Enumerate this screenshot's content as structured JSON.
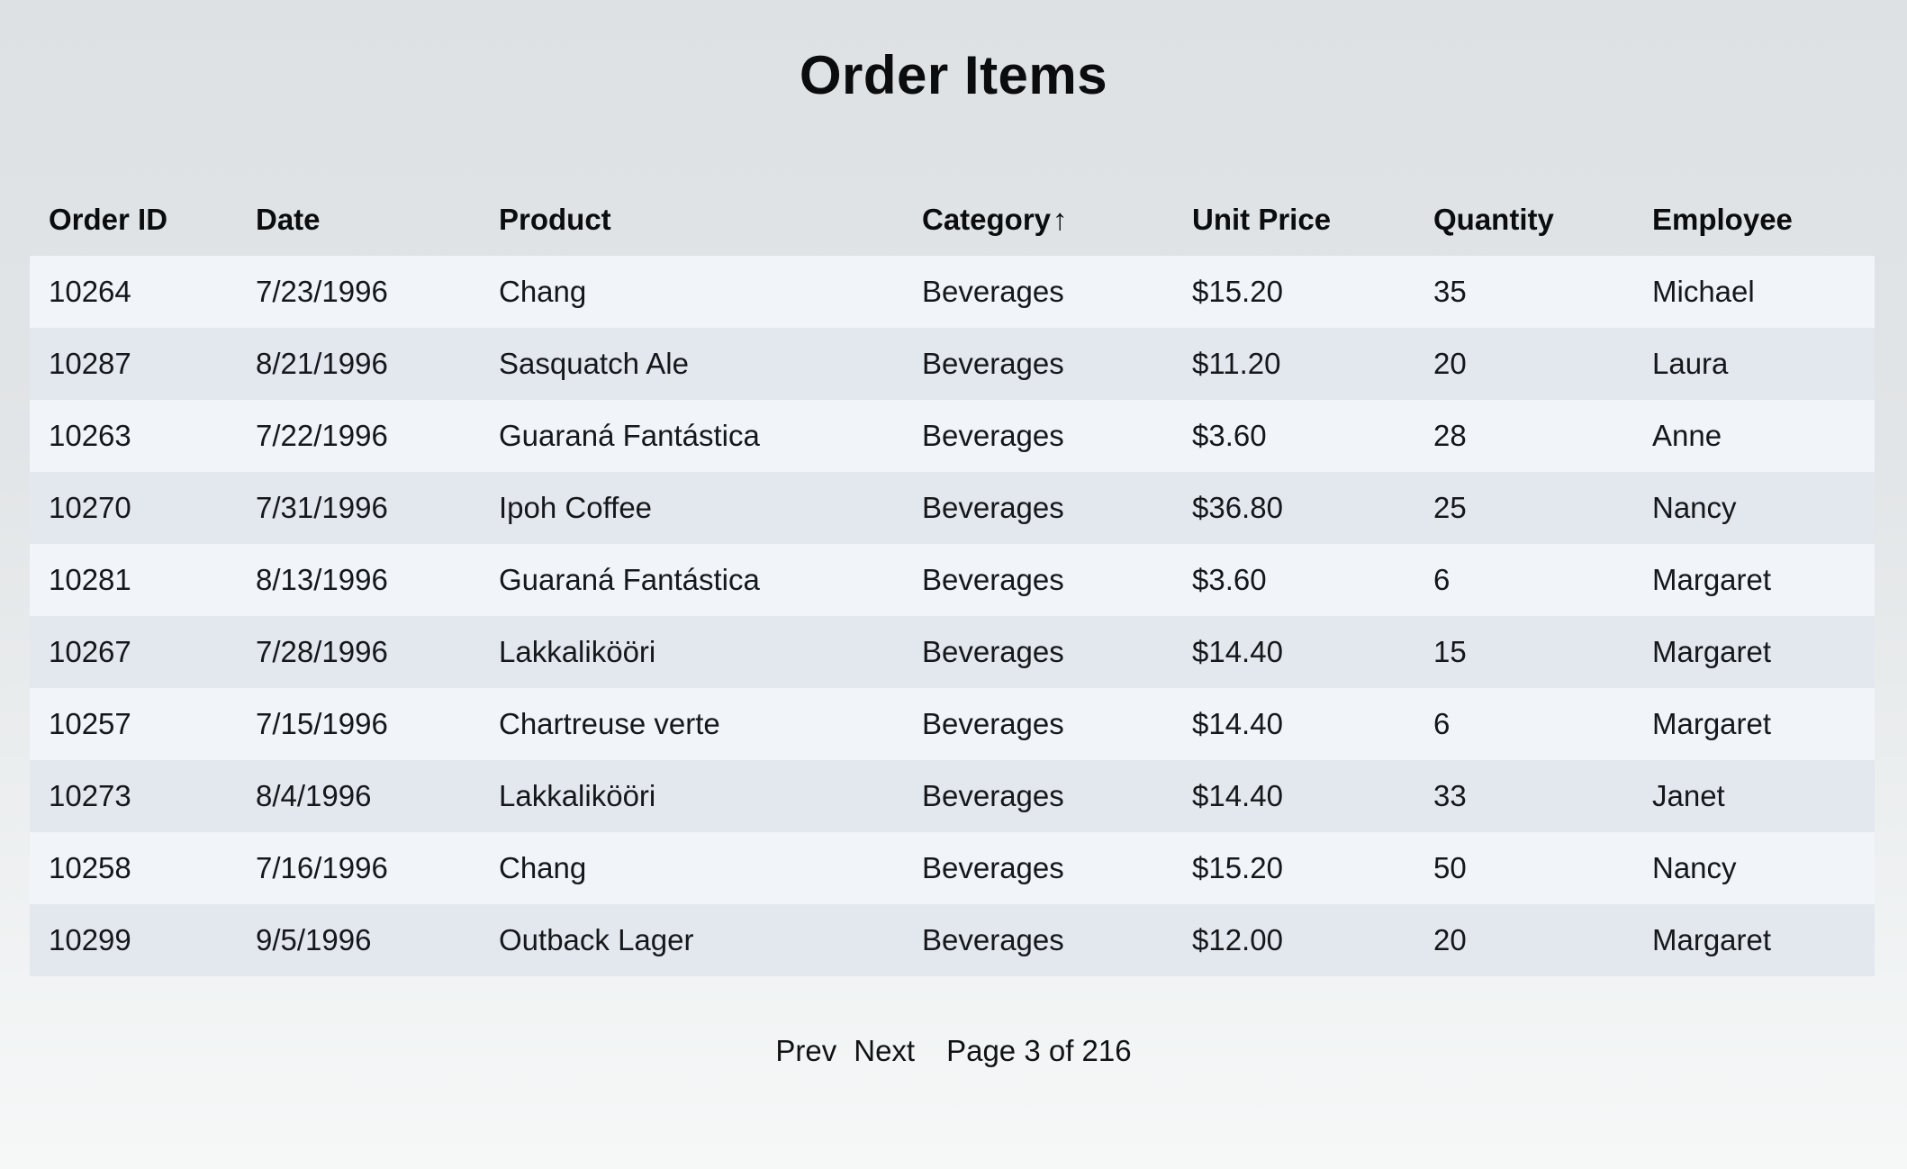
{
  "page": {
    "title": "Order Items"
  },
  "table": {
    "columns": [
      {
        "key": "order_id",
        "label": "Order ID"
      },
      {
        "key": "date",
        "label": "Date"
      },
      {
        "key": "product",
        "label": "Product"
      },
      {
        "key": "category",
        "label": "Category",
        "sorted": true,
        "sort_direction": "asc",
        "sort_icon": "↑"
      },
      {
        "key": "unit_price",
        "label": "Unit Price"
      },
      {
        "key": "quantity",
        "label": "Quantity"
      },
      {
        "key": "employee",
        "label": "Employee"
      }
    ],
    "rows": [
      [
        "10264",
        "7/23/1996",
        "Chang",
        "Beverages",
        "$15.20",
        "35",
        "Michael"
      ],
      [
        "10287",
        "8/21/1996",
        "Sasquatch Ale",
        "Beverages",
        "$11.20",
        "20",
        "Laura"
      ],
      [
        "10263",
        "7/22/1996",
        "Guaraná Fantástica",
        "Beverages",
        "$3.60",
        "28",
        "Anne"
      ],
      [
        "10270",
        "7/31/1996",
        "Ipoh Coffee",
        "Beverages",
        "$36.80",
        "25",
        "Nancy"
      ],
      [
        "10281",
        "8/13/1996",
        "Guaraná Fantástica",
        "Beverages",
        "$3.60",
        "6",
        "Margaret"
      ],
      [
        "10267",
        "7/28/1996",
        "Lakkalikööri",
        "Beverages",
        "$14.40",
        "15",
        "Margaret"
      ],
      [
        "10257",
        "7/15/1996",
        "Chartreuse verte",
        "Beverages",
        "$14.40",
        "6",
        "Margaret"
      ],
      [
        "10273",
        "8/4/1996",
        "Lakkalikööri",
        "Beverages",
        "$14.40",
        "33",
        "Janet"
      ],
      [
        "10258",
        "7/16/1996",
        "Chang",
        "Beverages",
        "$15.20",
        "50",
        "Nancy"
      ],
      [
        "10299",
        "9/5/1996",
        "Outback Lager",
        "Beverages",
        "$12.00",
        "20",
        "Margaret"
      ]
    ]
  },
  "pagination": {
    "prev_label": "Prev",
    "next_label": "Next",
    "status": "Page 3 of 216"
  },
  "colors": {
    "row_light": "#f1f4f8",
    "row_dark": "#e3e7ee",
    "bg_top": "#dde1e3",
    "bg_bottom": "#f6f8f8",
    "text": "#15181b"
  }
}
